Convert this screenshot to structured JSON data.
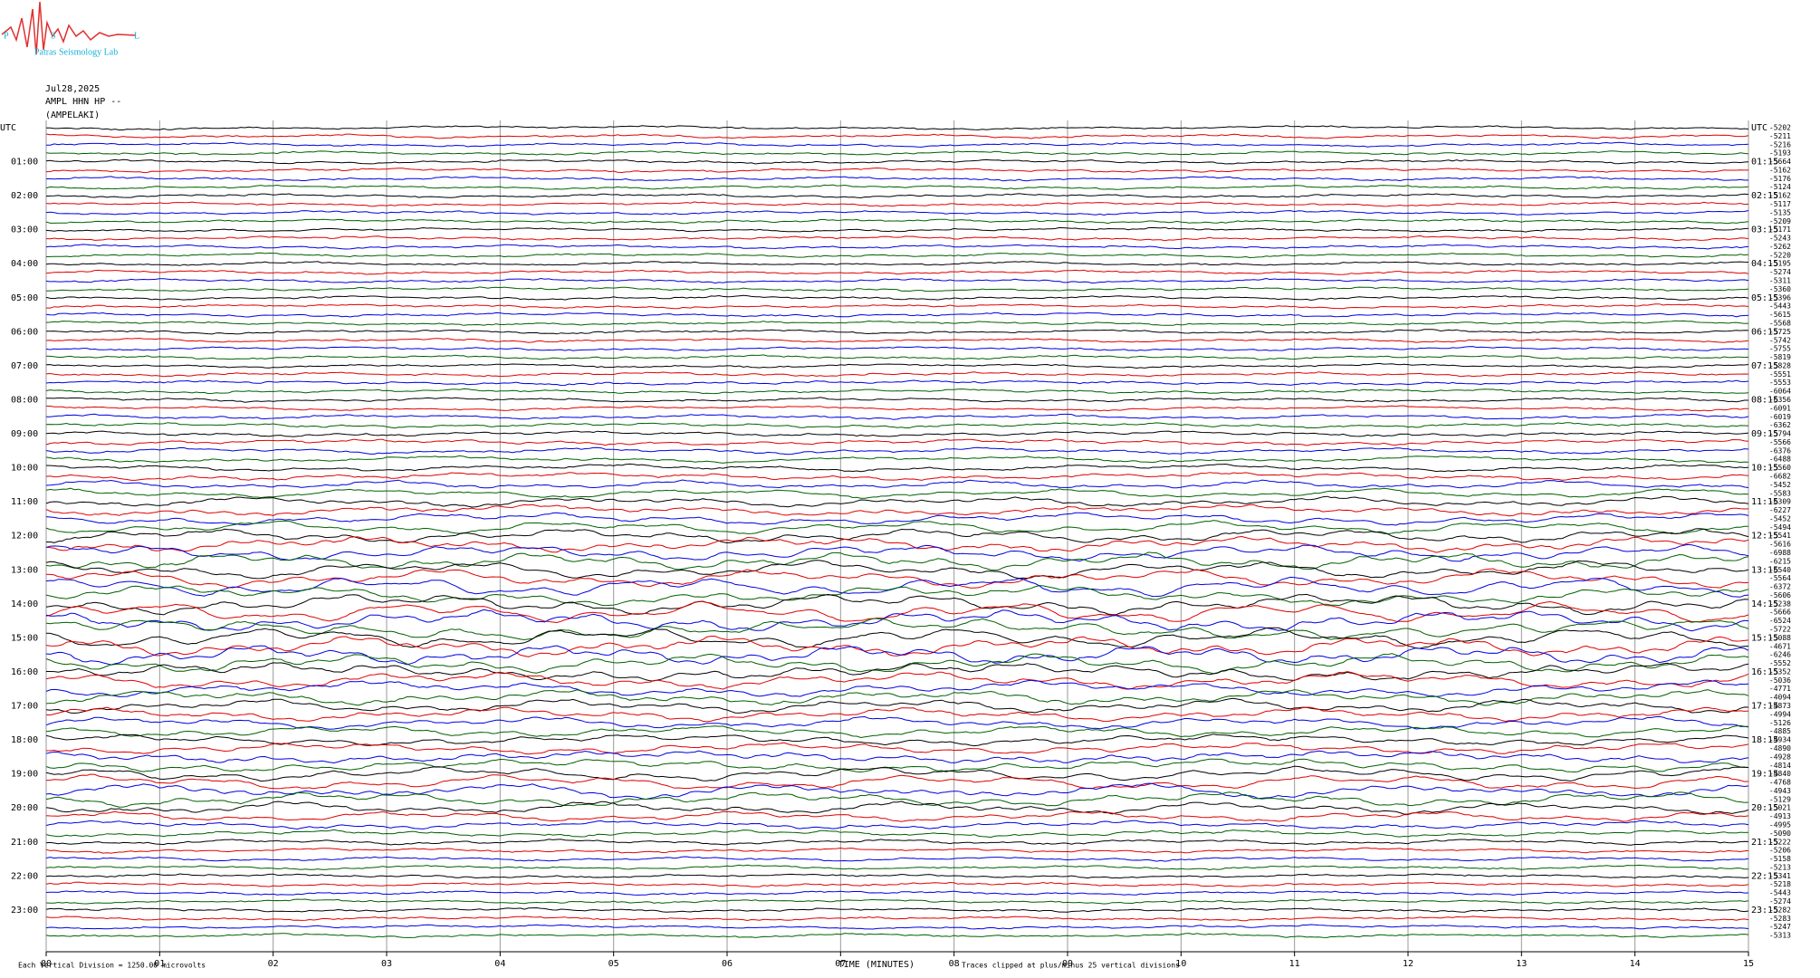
{
  "logo": {
    "letters": [
      "P",
      "S",
      "L"
    ],
    "text": "Patras Seismology Lab"
  },
  "header": {
    "date": "Jul28,2025",
    "station": "AMPL HHN HP --",
    "location": "(AMPELAKI)"
  },
  "chart_data": {
    "type": "helicorder",
    "left_labels": [
      "UTC",
      "01:00",
      "02:00",
      "03:00",
      "04:00",
      "05:00",
      "06:00",
      "07:00",
      "08:00",
      "09:00",
      "10:00",
      "11:00",
      "12:00",
      "13:00",
      "14:00",
      "15:00",
      "16:00",
      "17:00",
      "18:00",
      "19:00",
      "20:00",
      "21:00",
      "22:00",
      "23:00"
    ],
    "right_labels": [
      "UTC",
      "01:15",
      "02:15",
      "03:15",
      "04:15",
      "05:15",
      "06:15",
      "07:15",
      "08:15",
      "09:15",
      "10:15",
      "11:15",
      "12:15",
      "13:15",
      "14:15",
      "15:15",
      "16:15",
      "17:15",
      "18:15",
      "19:15",
      "20:15",
      "21:15",
      "22:15",
      "23:15"
    ],
    "trace_offsets": [
      -5202,
      -5211,
      -5216,
      -5193,
      -5664,
      -5162,
      -5176,
      -5124,
      -5162,
      -5117,
      -5135,
      -5209,
      -5171,
      -5243,
      -5262,
      -5220,
      -5195,
      -5274,
      -5311,
      -5360,
      -5396,
      -5443,
      -5615,
      -5568,
      -5725,
      -5742,
      -5755,
      -5819,
      -5828,
      -5551,
      -5553,
      -6064,
      -6356,
      -6091,
      -6019,
      -6362,
      -5794,
      -5566,
      -6376,
      -6488,
      -5560,
      -6682,
      -5452,
      -5583,
      -6309,
      -6227,
      -5452,
      -5494,
      -5541,
      -5616,
      -6988,
      -6215,
      -6540,
      -5564,
      -6372,
      -5606,
      -5238,
      -5666,
      -6524,
      -5722,
      -5088,
      -4671,
      -6246,
      -5552,
      -5352,
      -5036,
      -4771,
      -4094,
      -4873,
      -4994,
      -5126,
      -4885,
      -4934,
      -4890,
      -4928,
      -4814,
      -4840,
      -4768,
      -4943,
      -5129,
      -5021,
      -4913,
      -4995,
      -5090,
      -5222,
      -5206,
      -5158,
      -5213,
      -5341,
      -5218,
      -5443,
      -5274,
      -5282,
      -5283,
      -5247,
      -5313
    ],
    "trace_colors": [
      "#000000",
      "#e00000",
      "#0000e0",
      "#006000"
    ],
    "xlim": [
      0,
      15
    ],
    "xticks": [
      {
        "value": 0,
        "label": "00"
      },
      {
        "value": 1,
        "label": "01"
      },
      {
        "value": 2,
        "label": "02"
      },
      {
        "value": 3,
        "label": "03"
      },
      {
        "value": 4,
        "label": "04"
      },
      {
        "value": 5,
        "label": "05"
      },
      {
        "value": 6,
        "label": "06"
      },
      {
        "value": 7,
        "label": "07"
      },
      {
        "value": 8,
        "label": "08"
      },
      {
        "value": 9,
        "label": "09"
      },
      {
        "value": 10,
        "label": "10"
      },
      {
        "value": 11,
        "label": "11"
      },
      {
        "value": 12,
        "label": "12"
      },
      {
        "value": 13,
        "label": "13"
      },
      {
        "value": 14,
        "label": "14"
      },
      {
        "value": 15,
        "label": "15"
      }
    ],
    "xlabel": "TIME (MINUTES)",
    "scale_note": "Each Vertical Division = 1250.00 microvolts",
    "clip_note": "Traces clipped at plus/minus 25 vertical divisions",
    "grid": true
  }
}
